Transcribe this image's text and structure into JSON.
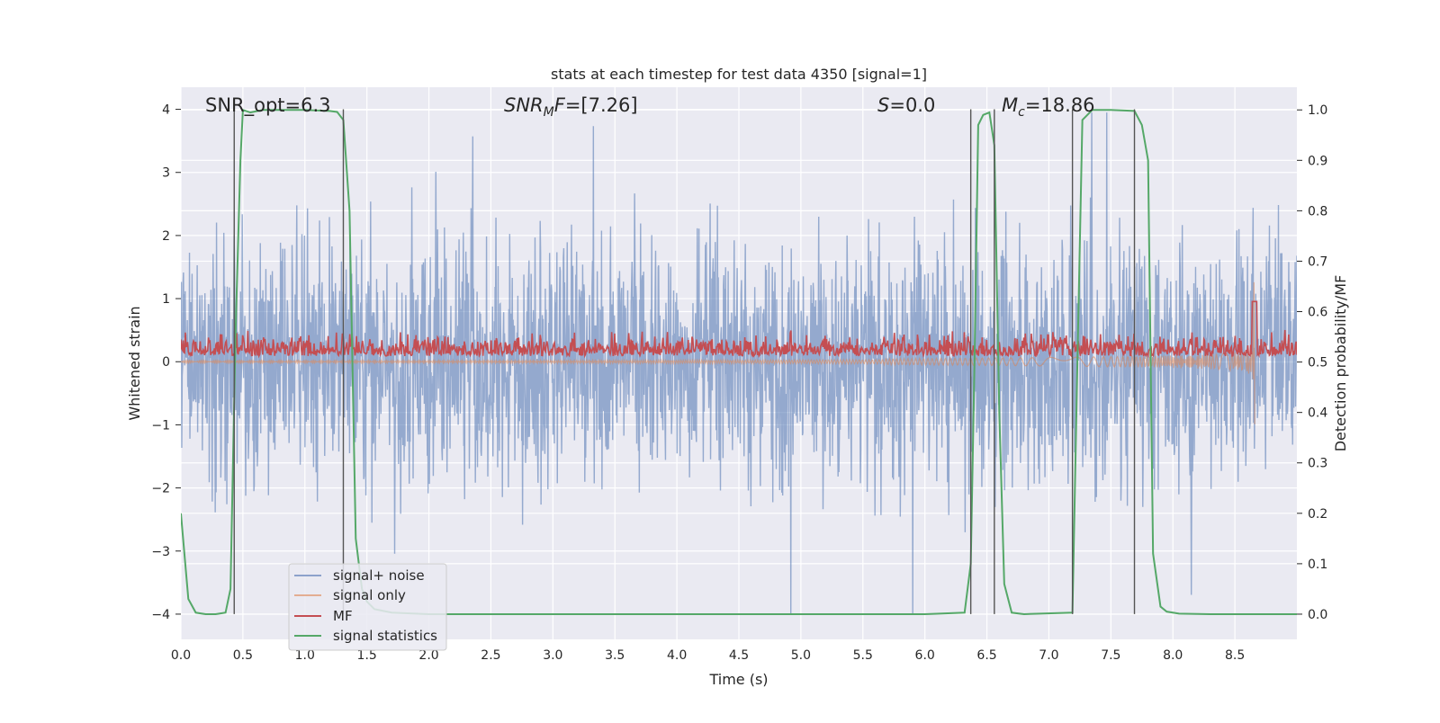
{
  "chart_data": {
    "type": "line",
    "title": "stats at each timestep for test data 4350 [signal=1]",
    "xlabel": "Time (s)",
    "ylabel_left": "Whitened strain",
    "ylabel_right": "Detection probability/MF",
    "xlim": [
      0.0,
      9.0
    ],
    "ylim_left": [
      -4.4,
      4.35
    ],
    "ylim_right": [
      -0.05,
      1.045
    ],
    "xticks": [
      0.0,
      0.5,
      1.0,
      1.5,
      2.0,
      2.5,
      3.0,
      3.5,
      4.0,
      4.5,
      5.0,
      5.5,
      6.0,
      6.5,
      7.0,
      7.5,
      8.0,
      8.5
    ],
    "xtick_labels": [
      "0.0",
      "0.5",
      "1.0",
      "1.5",
      "2.0",
      "2.5",
      "3.0",
      "3.5",
      "4.0",
      "4.5",
      "5.0",
      "5.5",
      "6.0",
      "6.5",
      "7.0",
      "7.5",
      "8.0",
      "8.5"
    ],
    "yticks_left": [
      -4,
      -3,
      -2,
      -1,
      0,
      1,
      2,
      3,
      4
    ],
    "yticks_left_labels": [
      "−4",
      "−3",
      "−2",
      "−1",
      "0",
      "1",
      "2",
      "3",
      "4"
    ],
    "yticks_right": [
      0.0,
      0.1,
      0.2,
      0.3,
      0.4,
      0.5,
      0.6,
      0.7,
      0.8,
      0.9,
      1.0
    ],
    "yticks_right_labels": [
      "0.0",
      "0.1",
      "0.2",
      "0.3",
      "0.4",
      "0.5",
      "0.6",
      "0.7",
      "0.8",
      "0.9",
      "1.0"
    ],
    "grid": true,
    "legend_position": "lower-left",
    "annotations": [
      {
        "text": "SNR_opt=6.3",
        "x": 0.2,
        "y": 4.0
      },
      {
        "text": "SNRMF=[7.26]",
        "x": 2.6,
        "y": 4.0
      },
      {
        "text": "S=0.0",
        "x": 5.6,
        "y": 4.0
      },
      {
        "text": "Mc=18.86",
        "x": 6.6,
        "y": 4.0
      }
    ],
    "vertical_markers_x": [
      0.43,
      1.31,
      6.37,
      6.56,
      7.19,
      7.69
    ],
    "series": [
      {
        "name": "signal+ noise",
        "color": "#4c72b0",
        "axis": "left",
        "description": "whitened noise plus signal, amplitude mostly within ±2.5 with spikes to about ±4",
        "amplitude_range": [
          -4.0,
          3.95
        ]
      },
      {
        "name": "signal only",
        "color": "#dd8452",
        "axis": "left",
        "description": "chirp growing toward merger near t≈8.66",
        "peak_x": 8.66,
        "peak_range": [
          -1.1,
          1.4
        ]
      },
      {
        "name": "MF",
        "color": "#c44e52",
        "axis": "right",
        "description": "matched-filter output, values near 0.5–0.58 with peak near t≈8.66",
        "typical_range": [
          0.5,
          0.58
        ],
        "peak": {
          "x": 8.66,
          "y": 0.62
        }
      },
      {
        "name": "signal statistics",
        "color": "#55a868",
        "axis": "right",
        "x": [
          0.0,
          0.06,
          0.12,
          0.2,
          0.28,
          0.36,
          0.4,
          0.44,
          0.48,
          0.5,
          0.56,
          0.66,
          0.8,
          1.0,
          1.2,
          1.26,
          1.31,
          1.36,
          1.41,
          1.46,
          1.5,
          1.56,
          1.7,
          2.0,
          6.0,
          6.32,
          6.37,
          6.4,
          6.43,
          6.47,
          6.52,
          6.56,
          6.6,
          6.64,
          6.7,
          6.8,
          7.19,
          7.23,
          7.27,
          7.35,
          7.5,
          7.69,
          7.75,
          7.8,
          7.84,
          7.9,
          7.95,
          8.05,
          8.3,
          9.0
        ],
        "y": [
          0.2,
          0.03,
          0.003,
          0.0,
          0.0,
          0.003,
          0.05,
          0.55,
          0.9,
          1.0,
          0.995,
          1.0,
          1.0,
          1.0,
          0.998,
          0.996,
          0.98,
          0.8,
          0.15,
          0.05,
          0.025,
          0.01,
          0.003,
          0.0,
          0.0,
          0.003,
          0.1,
          0.5,
          0.97,
          0.99,
          0.995,
          0.93,
          0.4,
          0.06,
          0.003,
          0.0,
          0.003,
          0.5,
          0.98,
          1.0,
          1.0,
          0.998,
          0.97,
          0.9,
          0.12,
          0.015,
          0.005,
          0.001,
          0.0,
          0.0
        ]
      }
    ]
  }
}
